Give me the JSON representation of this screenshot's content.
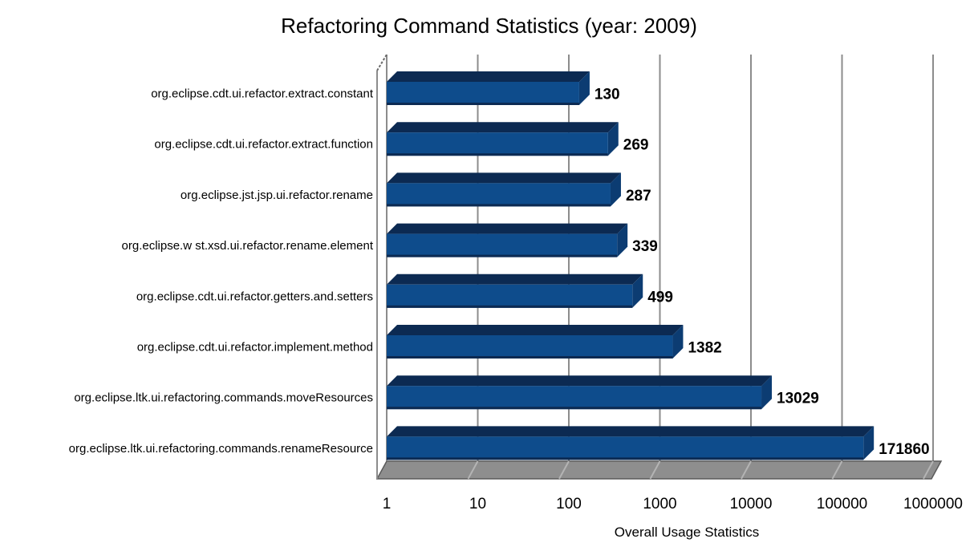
{
  "chart_data": {
    "type": "bar",
    "orientation": "horizontal",
    "x_scale": "log10",
    "title": "Refactoring Command Statistics (year: 2009)",
    "xlabel": "Overall Usage Statistics",
    "ylabel": "",
    "categories": [
      "org.eclipse.cdt.ui.refactor.extract.constant",
      "org.eclipse.cdt.ui.refactor.extract.function",
      "org.eclipse.jst.jsp.ui.refactor.rename",
      "org.eclipse.w st.xsd.ui.refactor.rename.element",
      "org.eclipse.cdt.ui.refactor.getters.and.setters",
      "org.eclipse.cdt.ui.refactor.implement.method",
      "org.eclipse.ltk.ui.refactoring.commands.moveResources",
      "org.eclipse.ltk.ui.refactoring.commands.renameResource"
    ],
    "values": [
      130,
      269,
      287,
      339,
      499,
      1382,
      13029,
      171860
    ],
    "value_labels": [
      "130",
      "269",
      "287",
      "339",
      "499",
      "1382",
      "13029",
      "171860"
    ],
    "x_ticks": [
      "1",
      "10",
      "100",
      "1000",
      "10000",
      "100000",
      "1000000"
    ],
    "xlim": [
      1,
      1000000
    ],
    "grid": true,
    "legend": false,
    "style": "3d",
    "colors": {
      "bar_front": "#0E4C8C",
      "bar_top": "#0C2A52",
      "bar_side": "#0C3C72",
      "bar_bottom_edge": "#0C2A52",
      "gridline": "#8C8C8C",
      "axis_line": "#8C8C8C",
      "wall_edge": "#6B6B6B",
      "floor": "#8E8E8E",
      "floor_edge": "#5A5A5A",
      "floor_tick": "#B4B4B4",
      "text": "#000000",
      "background": "#FFFFFF"
    }
  }
}
